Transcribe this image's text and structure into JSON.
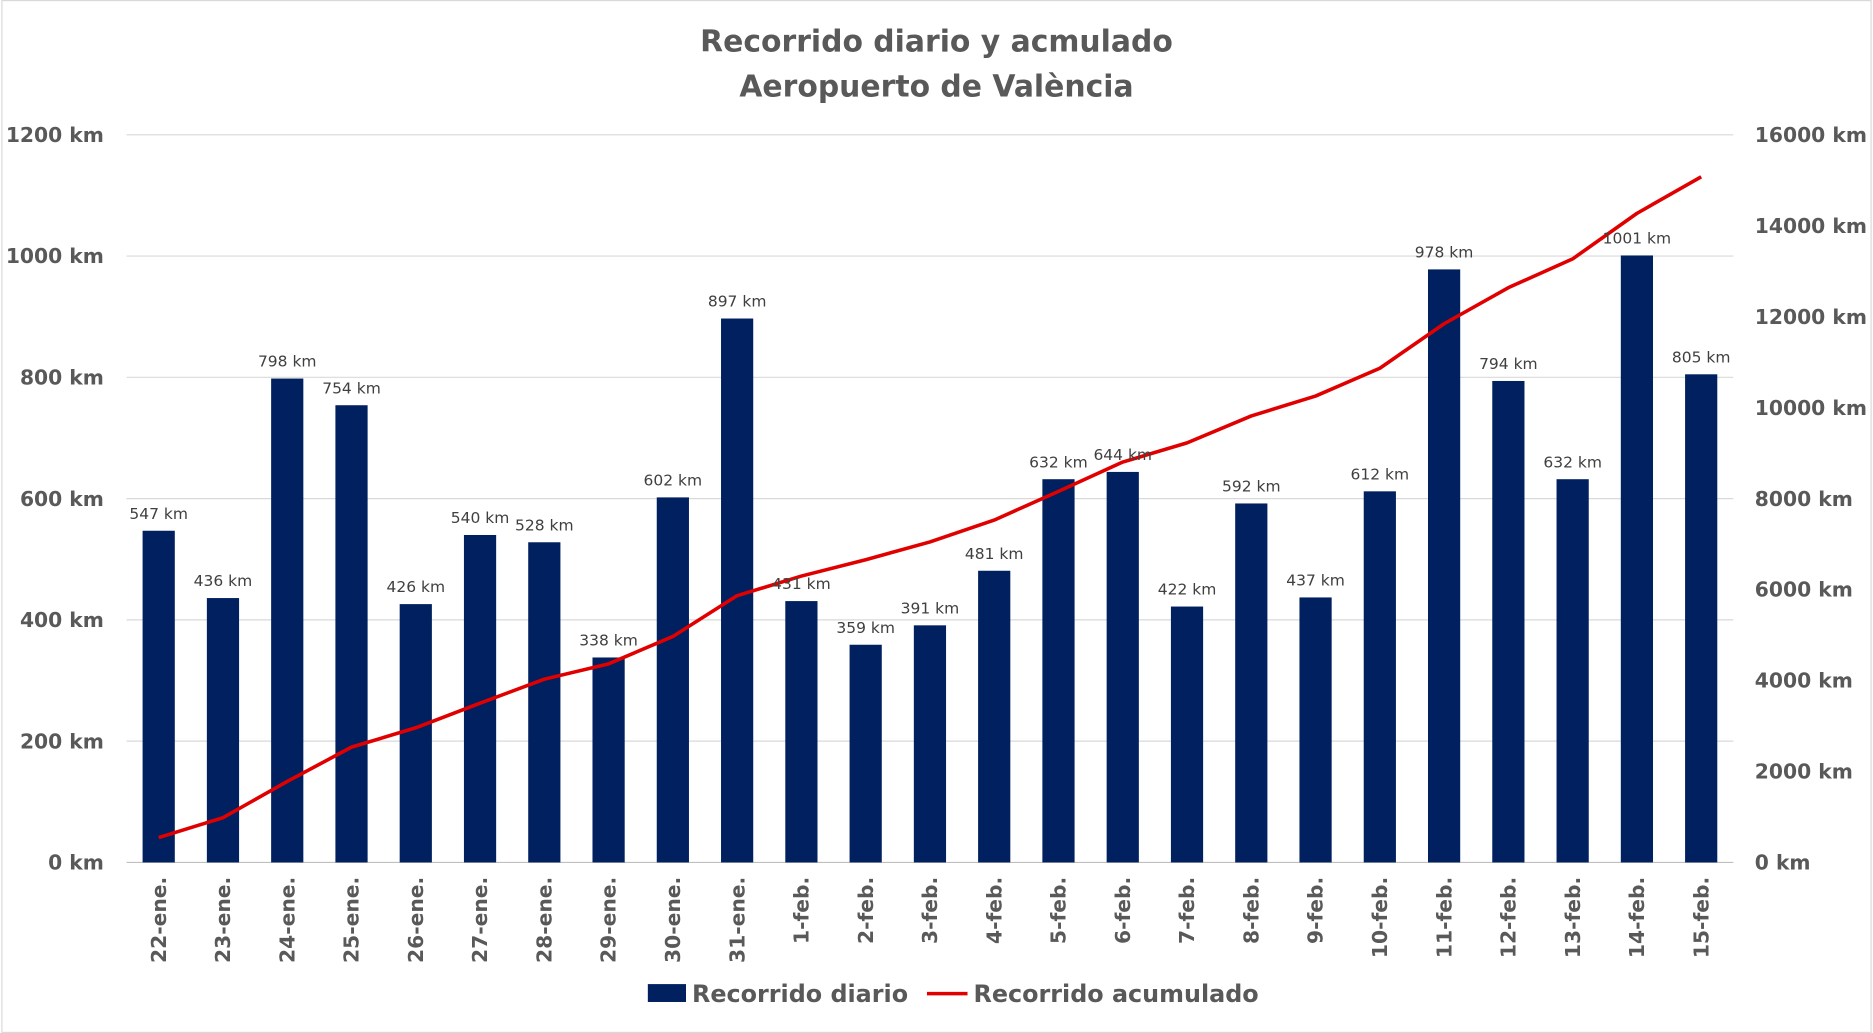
{
  "chart_data": {
    "type": "bar+line",
    "title": [
      "Recorrido diario y acmulado",
      "Aeropuerto de València"
    ],
    "categories": [
      "22-ene.",
      "23-ene.",
      "24-ene.",
      "25-ene.",
      "26-ene.",
      "27-ene.",
      "28-ene.",
      "29-ene.",
      "30-ene.",
      "31-ene.",
      "1-feb.",
      "2-feb.",
      "3-feb.",
      "4-feb.",
      "5-feb.",
      "6-feb.",
      "7-feb.",
      "8-feb.",
      "9-feb.",
      "10-feb.",
      "11-feb.",
      "12-feb.",
      "13-feb.",
      "14-feb.",
      "15-feb."
    ],
    "series": [
      {
        "name": "Recorrido diario",
        "type": "bar",
        "axis": "left",
        "color": "#002060",
        "values": [
          547,
          436,
          798,
          754,
          426,
          540,
          528,
          338,
          602,
          897,
          431,
          359,
          391,
          481,
          632,
          644,
          422,
          592,
          437,
          612,
          978,
          794,
          632,
          1001,
          805
        ]
      },
      {
        "name": "Recorrido acumulado",
        "type": "line",
        "axis": "right",
        "color": "#E00000",
        "values": [
          547,
          983,
          1781,
          2535,
          2961,
          3501,
          4029,
          4367,
          4969,
          5866,
          6297,
          6656,
          7047,
          7528,
          8160,
          8804,
          9226,
          9818,
          10255,
          10867,
          11845,
          12639,
          13271,
          14272,
          15077
        ]
      }
    ],
    "unit_suffix": " km",
    "y_left": {
      "range": [
        0,
        1200
      ],
      "ticks": [
        "0 km",
        "200 km",
        "400 km",
        "600 km",
        "800 km",
        "1000 km",
        "1200 km"
      ]
    },
    "y_right": {
      "range": [
        0,
        16000
      ],
      "ticks": [
        "0 km",
        "2000 km",
        "4000 km",
        "6000 km",
        "8000 km",
        "10000 km",
        "12000 km",
        "14000 km",
        "16000 km"
      ]
    },
    "grid": true,
    "legend_position": "bottom"
  }
}
